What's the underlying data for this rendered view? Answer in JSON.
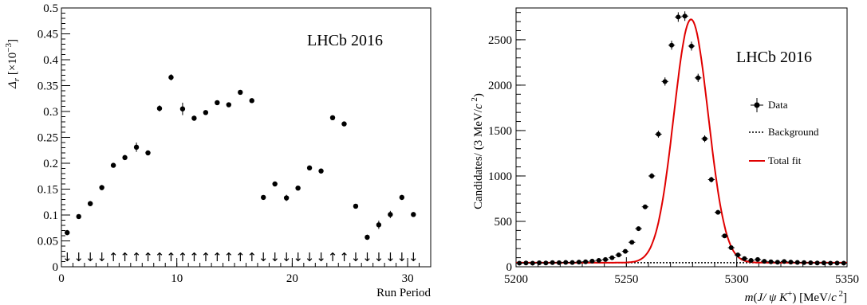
{
  "chart_data": [
    {
      "type": "scatter",
      "stamp": "LHCb 2016",
      "xlabel": "Run Period",
      "ylabel_parts": [
        "Δ",
        "r",
        " [×10",
        "−3",
        "]"
      ],
      "xlim": [
        0,
        32
      ],
      "ylim": [
        0,
        0.5
      ],
      "xticks": [
        0,
        10,
        20,
        30
      ],
      "yticks": [
        0,
        0.05,
        0.1,
        0.15,
        0.2,
        0.25,
        0.3,
        0.35,
        0.4,
        0.45,
        0.5
      ],
      "ytick_labels": [
        "0",
        "0.05",
        "0.1",
        "0.15",
        "0.2",
        "0.25",
        "0.3",
        "0.35",
        "0.4",
        "0.45",
        "0.5"
      ],
      "xtick_labels": [
        "0",
        "10",
        "20",
        "30"
      ],
      "series": [
        {
          "points": [
            {
              "x": 0.5,
              "y": 0.066,
              "err": 0.005
            },
            {
              "x": 1.5,
              "y": 0.097,
              "err": 0.004
            },
            {
              "x": 2.5,
              "y": 0.122,
              "err": 0.005
            },
            {
              "x": 3.5,
              "y": 0.153,
              "err": 0.005
            },
            {
              "x": 4.5,
              "y": 0.196,
              "err": 0.004
            },
            {
              "x": 5.5,
              "y": 0.211,
              "err": 0.005
            },
            {
              "x": 6.5,
              "y": 0.231,
              "err": 0.009
            },
            {
              "x": 7.5,
              "y": 0.22,
              "err": 0.004
            },
            {
              "x": 8.5,
              "y": 0.306,
              "err": 0.006
            },
            {
              "x": 9.5,
              "y": 0.366,
              "err": 0.006
            },
            {
              "x": 10.5,
              "y": 0.305,
              "err": 0.012
            },
            {
              "x": 11.5,
              "y": 0.287,
              "err": 0.005
            },
            {
              "x": 12.5,
              "y": 0.298,
              "err": 0.004
            },
            {
              "x": 13.5,
              "y": 0.317,
              "err": 0.003
            },
            {
              "x": 14.5,
              "y": 0.313,
              "err": 0.003
            },
            {
              "x": 15.5,
              "y": 0.337,
              "err": 0.004
            },
            {
              "x": 16.5,
              "y": 0.321,
              "err": 0.003
            },
            {
              "x": 17.5,
              "y": 0.134,
              "err": 0.003
            },
            {
              "x": 18.5,
              "y": 0.16,
              "err": 0.003
            },
            {
              "x": 19.5,
              "y": 0.133,
              "err": 0.006
            },
            {
              "x": 20.5,
              "y": 0.152,
              "err": 0.003
            },
            {
              "x": 21.5,
              "y": 0.191,
              "err": 0.004
            },
            {
              "x": 22.5,
              "y": 0.185,
              "err": 0.004
            },
            {
              "x": 23.5,
              "y": 0.288,
              "err": 0.003
            },
            {
              "x": 24.5,
              "y": 0.276,
              "err": 0.003
            },
            {
              "x": 25.5,
              "y": 0.117,
              "err": 0.004
            },
            {
              "x": 26.5,
              "y": 0.057,
              "err": 0.005
            },
            {
              "x": 27.5,
              "y": 0.081,
              "err": 0.008
            },
            {
              "x": 28.5,
              "y": 0.101,
              "err": 0.007
            },
            {
              "x": 29.5,
              "y": 0.134,
              "err": 0.005
            },
            {
              "x": 30.5,
              "y": 0.101,
              "err": 0.003
            }
          ]
        }
      ],
      "polarity_arrows": [
        "↓",
        "↓",
        "↓",
        "↓",
        "↑",
        "↑",
        "↑",
        "↑",
        "↑",
        "↑",
        "↑",
        "↑",
        "↑",
        "↑",
        "↑",
        "↑",
        "↑",
        "↓",
        "↓",
        "↓",
        "↓",
        "↓",
        "↓",
        "↑",
        "↑",
        "↓",
        "↓",
        "↓",
        "↓",
        "↓",
        "↓"
      ]
    },
    {
      "type": "line",
      "stamp": "LHCb 2016",
      "xlabel_parts": [
        "m",
        "(",
        "J/ ψ",
        " ",
        "K",
        "+",
        ") [MeV/",
        "c",
        " 2",
        "]"
      ],
      "ylabel_parts": [
        "Candidates/ (3 MeV/",
        "c",
        " 2",
        ")"
      ],
      "xlim": [
        5200,
        5350
      ],
      "ylim": [
        0,
        2850
      ],
      "xticks": [
        5200,
        5250,
        5300,
        5350
      ],
      "xtick_labels": [
        "5200",
        "5250",
        "5300",
        "5350"
      ],
      "yticks": [
        0,
        500,
        1000,
        1500,
        2000,
        2500
      ],
      "ytick_labels": [
        "0",
        "500",
        "1000",
        "1500",
        "2000",
        "2500"
      ],
      "legend": {
        "position": "right",
        "entries": [
          {
            "label": "Data",
            "style": "marker"
          },
          {
            "label": "Background",
            "style": "dotted"
          },
          {
            "label": "Total fit",
            "style": "line",
            "color": "#e00000"
          }
        ]
      },
      "fit": {
        "mean": 5279.3,
        "sigma": 7.8,
        "amplitude": 2680,
        "background": 45
      },
      "series": [
        {
          "name": "Data",
          "points": [
            {
              "x": 5201.5,
              "y": 40
            },
            {
              "x": 5204.5,
              "y": 42
            },
            {
              "x": 5207.5,
              "y": 40
            },
            {
              "x": 5210.5,
              "y": 44
            },
            {
              "x": 5213.5,
              "y": 42
            },
            {
              "x": 5216.5,
              "y": 46
            },
            {
              "x": 5219.5,
              "y": 45
            },
            {
              "x": 5222.5,
              "y": 48
            },
            {
              "x": 5225.5,
              "y": 47
            },
            {
              "x": 5228.5,
              "y": 52
            },
            {
              "x": 5231.5,
              "y": 55
            },
            {
              "x": 5234.5,
              "y": 62
            },
            {
              "x": 5237.5,
              "y": 70
            },
            {
              "x": 5240.5,
              "y": 80
            },
            {
              "x": 5243.5,
              "y": 100
            },
            {
              "x": 5246.5,
              "y": 130
            },
            {
              "x": 5249.5,
              "y": 170
            },
            {
              "x": 5252.5,
              "y": 270
            },
            {
              "x": 5255.5,
              "y": 420
            },
            {
              "x": 5258.5,
              "y": 660
            },
            {
              "x": 5261.5,
              "y": 1000
            },
            {
              "x": 5264.5,
              "y": 1460
            },
            {
              "x": 5267.5,
              "y": 2040
            },
            {
              "x": 5270.5,
              "y": 2440
            },
            {
              "x": 5273.5,
              "y": 2750
            },
            {
              "x": 5276.5,
              "y": 2760
            },
            {
              "x": 5279.5,
              "y": 2430
            },
            {
              "x": 5282.5,
              "y": 2080
            },
            {
              "x": 5285.5,
              "y": 1410
            },
            {
              "x": 5288.5,
              "y": 960
            },
            {
              "x": 5291.5,
              "y": 600
            },
            {
              "x": 5294.5,
              "y": 340
            },
            {
              "x": 5297.5,
              "y": 210
            },
            {
              "x": 5300.5,
              "y": 130
            },
            {
              "x": 5303.5,
              "y": 90
            },
            {
              "x": 5306.5,
              "y": 70
            },
            {
              "x": 5309.5,
              "y": 80
            },
            {
              "x": 5312.5,
              "y": 60
            },
            {
              "x": 5315.5,
              "y": 55
            },
            {
              "x": 5318.5,
              "y": 50
            },
            {
              "x": 5321.5,
              "y": 58
            },
            {
              "x": 5324.5,
              "y": 52
            },
            {
              "x": 5327.5,
              "y": 48
            },
            {
              "x": 5330.5,
              "y": 46
            },
            {
              "x": 5333.5,
              "y": 44
            },
            {
              "x": 5336.5,
              "y": 42
            },
            {
              "x": 5339.5,
              "y": 43
            },
            {
              "x": 5342.5,
              "y": 40
            },
            {
              "x": 5345.5,
              "y": 41
            },
            {
              "x": 5348.5,
              "y": 40
            }
          ]
        }
      ]
    }
  ]
}
